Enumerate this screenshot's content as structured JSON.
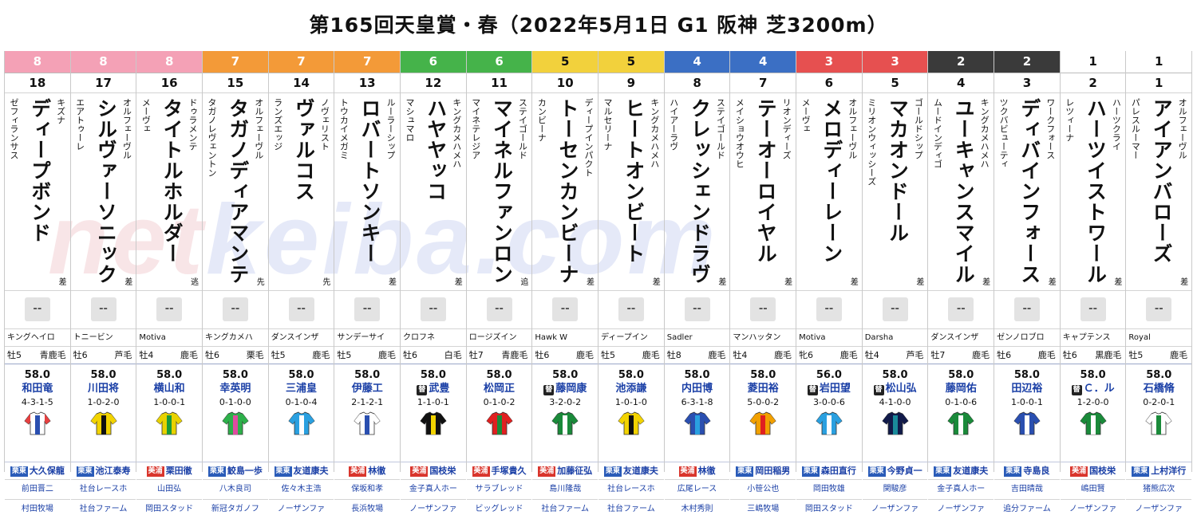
{
  "race": {
    "title": "第165回天皇賞・春（2022年5月1日 G1 阪神 芝3200m）"
  },
  "watermark": {
    "part1": "net",
    "part2": "keiba.com"
  },
  "frame_colors": {
    "8": "#f4a1b6",
    "7": "#f39a38",
    "6": "#45b34a",
    "5": "#f2d13c",
    "4": "#3b6fc4",
    "3": "#e65050",
    "2": "#3a3a3a",
    "1": "#ffffff"
  },
  "placeholder_odds": "--",
  "horses": [
    {
      "frame": "8",
      "number": "18",
      "sire": "キズナ",
      "name": "ディープボンド",
      "dam": "ゼフィランサス",
      "style": "差",
      "bms": "キングヘイロ",
      "sex_age": "牡5",
      "coat": "青鹿毛",
      "weight": "58.0",
      "jockey": "和田竜",
      "sub": "",
      "record": "4-3-1-5",
      "trainer_area": "栗東",
      "trainer": "大久保龍",
      "owner": "前田晋二",
      "breeder": "村田牧場",
      "silk": [
        "#ffffff",
        "#2a4fb0",
        "#e64040"
      ]
    },
    {
      "frame": "8",
      "number": "17",
      "sire": "オルフェーヴル",
      "name": "シルヴァーソニック",
      "dam": "エアトゥーレ",
      "style": "差",
      "bms": "トニービン",
      "sex_age": "牡6",
      "coat": "芦毛",
      "weight": "58.0",
      "jockey": "川田将",
      "sub": "",
      "record": "1-0-2-0",
      "trainer_area": "栗東",
      "trainer": "池江泰寿",
      "owner": "社台レースホ",
      "breeder": "社台ファーム",
      "silk": [
        "#f2d300",
        "#111111",
        "#f2d300"
      ]
    },
    {
      "frame": "8",
      "number": "16",
      "sire": "ドゥラメンテ",
      "name": "タイトルホルダー",
      "dam": "メーヴェ",
      "style": "逃",
      "bms": "Motiva",
      "sex_age": "牡4",
      "coat": "鹿毛",
      "weight": "58.0",
      "jockey": "横山和",
      "sub": "",
      "record": "1-0-0-1",
      "trainer_area": "美浦",
      "trainer": "栗田徹",
      "owner": "山田弘",
      "breeder": "岡田スタッド",
      "silk": [
        "#e8d200",
        "#1a9a3a",
        "#e8d200"
      ]
    },
    {
      "frame": "7",
      "number": "15",
      "sire": "オルフェーヴル",
      "name": "タガノディアマンテ",
      "dam": "タガノレヴェントン",
      "style": "先",
      "bms": "キングカメハ",
      "sex_age": "牡6",
      "coat": "栗毛",
      "weight": "58.0",
      "jockey": "幸英明",
      "sub": "",
      "record": "0-1-0-0",
      "trainer_area": "栗東",
      "trainer": "鮫島一歩",
      "owner": "八木良司",
      "breeder": "新冠タガノフ",
      "silk": [
        "#2db04a",
        "#e04ba0",
        "#2db04a"
      ]
    },
    {
      "frame": "7",
      "number": "14",
      "sire": "ノヴェリスト",
      "name": "ヴァルコス",
      "dam": "ランズエッジ",
      "style": "先",
      "bms": "ダンスインザ",
      "sex_age": "牡5",
      "coat": "鹿毛",
      "weight": "58.0",
      "jockey": "三浦皇",
      "sub": "",
      "record": "0-1-0-4",
      "trainer_area": "栗東",
      "trainer": "友道康夫",
      "owner": "佐々木主浩",
      "breeder": "ノーザンファ",
      "silk": [
        "#2aa0e0",
        "#ffffff",
        "#2aa0e0"
      ]
    },
    {
      "frame": "7",
      "number": "13",
      "sire": "ルーラーシップ",
      "name": "ロバートソンキー",
      "dam": "トウカイメガミ",
      "style": "差",
      "bms": "サンデーサイ",
      "sex_age": "牡5",
      "coat": "鹿毛",
      "weight": "58.0",
      "jockey": "伊藤工",
      "sub": "",
      "record": "2-1-2-1",
      "trainer_area": "美浦",
      "trainer": "林徹",
      "owner": "保坂和孝",
      "breeder": "長浜牧場",
      "silk": [
        "#ffffff",
        "#2a4fb0",
        "#ffffff"
      ]
    },
    {
      "frame": "6",
      "number": "12",
      "sire": "キングカメハメハ",
      "name": "ハヤヤッコ",
      "dam": "マシュマロ",
      "style": "差",
      "bms": "クロフネ",
      "sex_age": "牡6",
      "coat": "白毛",
      "weight": "58.0",
      "jockey": "武豊",
      "sub": "替",
      "record": "1-1-0-1",
      "trainer_area": "美浦",
      "trainer": "国枝栄",
      "owner": "金子真人ホー",
      "breeder": "ノーザンファ",
      "silk": [
        "#111111",
        "#f2d300",
        "#111111"
      ]
    },
    {
      "frame": "6",
      "number": "11",
      "sire": "ステイゴールド",
      "name": "マイネルファンロン",
      "dam": "マイネテレジア",
      "style": "追",
      "bms": "ロージズイン",
      "sex_age": "牡7",
      "coat": "青鹿毛",
      "weight": "58.0",
      "jockey": "松岡正",
      "sub": "",
      "record": "0-1-0-2",
      "trainer_area": "美浦",
      "trainer": "手塚貴久",
      "owner": "サラブレッド",
      "breeder": "ビッグレッド",
      "silk": [
        "#e02020",
        "#1a8a3a",
        "#e02020"
      ]
    },
    {
      "frame": "5",
      "number": "10",
      "sire": "ディープインパクト",
      "name": "トーセンカンビーナ",
      "dam": "カンビーナ",
      "style": "差",
      "bms": "Hawk W",
      "sex_age": "牡6",
      "coat": "鹿毛",
      "weight": "58.0",
      "jockey": "藤岡康",
      "sub": "替",
      "record": "3-2-0-2",
      "trainer_area": "美浦",
      "trainer": "加藤征弘",
      "owner": "島川隆哉",
      "breeder": "社台ファーム",
      "silk": [
        "#1a8a3a",
        "#ffffff",
        "#1a8a3a"
      ]
    },
    {
      "frame": "5",
      "number": "9",
      "sire": "キングカメハメハ",
      "name": "ヒートオンビート",
      "dam": "マルセリーナ",
      "style": "差",
      "bms": "ディープイン",
      "sex_age": "牡5",
      "coat": "鹿毛",
      "weight": "58.0",
      "jockey": "池添謙",
      "sub": "",
      "record": "1-0-1-0",
      "trainer_area": "栗東",
      "trainer": "友道康夫",
      "owner": "社台レースホ",
      "breeder": "社台ファーム",
      "silk": [
        "#f2d300",
        "#111111",
        "#f2d300"
      ]
    },
    {
      "frame": "4",
      "number": "8",
      "sire": "ステイゴールド",
      "name": "クレッシェンドラヴ",
      "dam": "ハイアーラヴ",
      "style": "差",
      "bms": "Sadler",
      "sex_age": "牡8",
      "coat": "鹿毛",
      "weight": "58.0",
      "jockey": "内田博",
      "sub": "",
      "record": "6-3-1-8",
      "trainer_area": "美浦",
      "trainer": "林徹",
      "owner": "広尾レース",
      "breeder": "木村秀則",
      "silk": [
        "#2a4fb0",
        "#2aa0e0",
        "#2a4fb0"
      ]
    },
    {
      "frame": "4",
      "number": "7",
      "sire": "リオンディーズ",
      "name": "テーオーロイヤル",
      "dam": "メイショウオウヒ",
      "style": "差",
      "bms": "マンハッタン",
      "sex_age": "牡4",
      "coat": "鹿毛",
      "weight": "58.0",
      "jockey": "菱田裕",
      "sub": "",
      "record": "5-0-0-2",
      "trainer_area": "栗東",
      "trainer": "岡田稲男",
      "owner": "小笹公也",
      "breeder": "三嶋牧場",
      "silk": [
        "#f2a000",
        "#e02020",
        "#f2a000"
      ]
    },
    {
      "frame": "3",
      "number": "6",
      "sire": "オルフェーヴル",
      "name": "メロディーレーン",
      "dam": "メーヴェ",
      "style": "差",
      "bms": "Motiva",
      "sex_age": "牝6",
      "coat": "鹿毛",
      "weight": "56.0",
      "jockey": "岩田望",
      "sub": "替",
      "record": "3-0-0-6",
      "trainer_area": "栗東",
      "trainer": "森田直行",
      "owner": "岡田牧雄",
      "breeder": "岡田スタッド",
      "silk": [
        "#2aa0e0",
        "#ffffff",
        "#2aa0e0"
      ]
    },
    {
      "frame": "3",
      "number": "5",
      "sire": "ゴールドシップ",
      "name": "マカオンドール",
      "dam": "ミリオンウィッシーズ",
      "style": "差",
      "bms": "Darsha",
      "sex_age": "牡4",
      "coat": "芦毛",
      "weight": "58.0",
      "jockey": "松山弘",
      "sub": "替",
      "record": "4-1-0-0",
      "trainer_area": "栗東",
      "trainer": "今野貞一",
      "owner": "関駿彦",
      "breeder": "ノーザンファ",
      "silk": [
        "#111a4a",
        "#1a8a9a",
        "#111a4a"
      ]
    },
    {
      "frame": "2",
      "number": "4",
      "sire": "キングカメハメハ",
      "name": "ユーキャンスマイル",
      "dam": "ムードインディゴ",
      "style": "差",
      "bms": "ダンスインザ",
      "sex_age": "牡7",
      "coat": "鹿毛",
      "weight": "58.0",
      "jockey": "藤岡佑",
      "sub": "",
      "record": "0-1-0-6",
      "trainer_area": "栗東",
      "trainer": "友道康夫",
      "owner": "金子真人ホー",
      "breeder": "ノーザンファ",
      "silk": [
        "#1a8a3a",
        "#ffffff",
        "#1a8a3a"
      ]
    },
    {
      "frame": "2",
      "number": "3",
      "sire": "ワークフォース",
      "name": "ディバインフォース",
      "dam": "ツクバビューティ",
      "style": "差",
      "bms": "ゼンノロブロ",
      "sex_age": "牡6",
      "coat": "鹿毛",
      "weight": "58.0",
      "jockey": "田辺裕",
      "sub": "",
      "record": "1-0-0-1",
      "trainer_area": "栗東",
      "trainer": "寺島良",
      "owner": "吉田晴哉",
      "breeder": "追分ファーム",
      "silk": [
        "#2a4fb0",
        "#ffffff",
        "#2a4fb0"
      ]
    },
    {
      "frame": "1",
      "number": "2",
      "sire": "ハーツクライ",
      "name": "ハーツイストワール",
      "dam": "レツィーナ",
      "style": "差",
      "bms": "キャプテンス",
      "sex_age": "牡6",
      "coat": "黒鹿毛",
      "weight": "58.0",
      "jockey": "Ｃ．ル",
      "sub": "替",
      "record": "1-2-0-0",
      "trainer_area": "美浦",
      "trainer": "国枝栄",
      "owner": "嶋田賢",
      "breeder": "ノーザンファ",
      "silk": [
        "#1a8a3a",
        "#ffffff",
        "#1a8a3a"
      ]
    },
    {
      "frame": "1",
      "number": "1",
      "sire": "オルフェーヴル",
      "name": "アイアンバローズ",
      "dam": "パレスルーマー",
      "style": "差",
      "bms": "Royal",
      "sex_age": "牡5",
      "coat": "鹿毛",
      "weight": "58.0",
      "jockey": "石橋脩",
      "sub": "",
      "record": "0-2-0-1",
      "trainer_area": "栗東",
      "trainer": "上村洋行",
      "owner": "猪熊広次",
      "breeder": "ノーザンファ",
      "silk": [
        "#ffffff",
        "#1a8a3a",
        "#ffffff"
      ]
    }
  ]
}
